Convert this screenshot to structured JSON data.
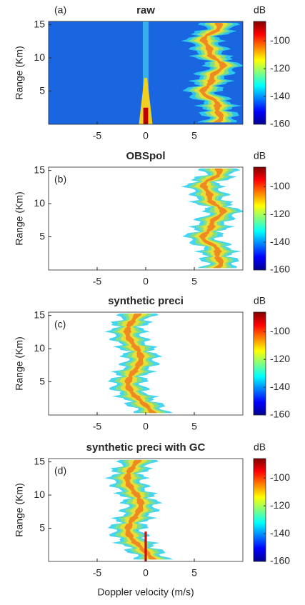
{
  "chart_data": [
    {
      "type": "heatmap",
      "title": "raw",
      "panel_label": "(a)",
      "ylabel": "Range (Km)",
      "colormap": "jet",
      "xlim": [
        -10,
        10
      ],
      "xticks": [
        -5,
        0,
        5
      ],
      "ylim": [
        0,
        15.5
      ],
      "yticks": [
        5,
        10,
        15
      ],
      "clim": [
        -160,
        -86
      ],
      "cticks": [
        -100,
        -120,
        -140,
        -160
      ],
      "colorbar_label": "dB"
    },
    {
      "type": "heatmap",
      "title": "OBSpol",
      "panel_label": "(b)",
      "ylabel": "Range (Km)",
      "colormap": "jet",
      "xlim": [
        -10,
        10
      ],
      "xticks": [
        -5,
        0,
        5
      ],
      "ylim": [
        0,
        15.5
      ],
      "yticks": [
        5,
        10,
        15
      ],
      "clim": [
        -160,
        -86
      ],
      "cticks": [
        -100,
        -120,
        -140,
        -160
      ],
      "colorbar_label": "dB"
    },
    {
      "type": "heatmap",
      "title": "synthetic preci",
      "panel_label": "(c)",
      "ylabel": "Range (Km)",
      "colormap": "jet",
      "xlim": [
        -10,
        10
      ],
      "xticks": [
        -5,
        0,
        5
      ],
      "ylim": [
        0,
        15.5
      ],
      "yticks": [
        5,
        10,
        15
      ],
      "clim": [
        -160,
        -86
      ],
      "cticks": [
        -100,
        -120,
        -140,
        -160
      ],
      "colorbar_label": "dB"
    },
    {
      "type": "heatmap",
      "title": "synthetic preci with GC",
      "panel_label": "(d)",
      "ylabel": "Range (Km)",
      "colormap": "jet",
      "xlim": [
        -10,
        10
      ],
      "xticks": [
        -5,
        0,
        5
      ],
      "ylim": [
        0,
        15.5
      ],
      "yticks": [
        5,
        10,
        15
      ],
      "clim": [
        -160,
        -86
      ],
      "cticks": [
        -100,
        -120,
        -140,
        -160
      ],
      "colorbar_label": "dB",
      "xlabel": "Doppler velocity (m/s)"
    }
  ]
}
